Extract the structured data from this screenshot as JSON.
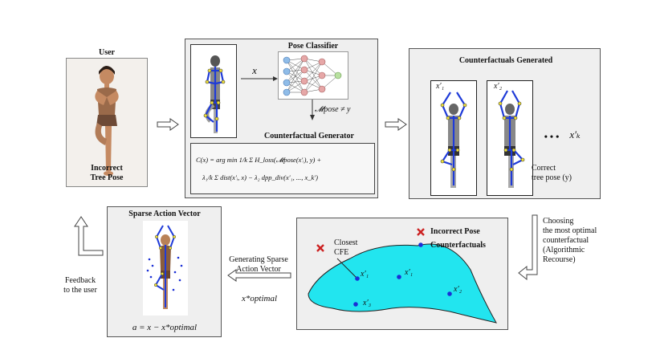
{
  "user": {
    "title": "User",
    "caption_line1": "Incorrect",
    "caption_line2": "Tree Pose"
  },
  "classifier": {
    "title": "Pose Classifier",
    "input_symbol": "x",
    "output_expr": "𝓜pose ≠ y",
    "generator_title": "Counterfactual Generator",
    "formula_line1": "C(x) = arg min  1/k Σ H_loss(𝓜pose(x′ᵢ), y) +",
    "formula_line2": "λ₁/k Σ dist(x′ᵢ, x) − λ₂ dpp_div(x′₁, ..., x_k′)"
  },
  "counterfactuals": {
    "title": "Counterfactuals Generated",
    "cf1": "x′₁",
    "cf2": "x′₂",
    "dots": "• • •",
    "cfk": "x′ₖ",
    "caption_line1": "Correct",
    "caption_line2": "tree pose (y)"
  },
  "choosing": {
    "line1": "Choosing",
    "line2": "the most optimal",
    "line3": "counterfactual",
    "line4": "(Algorithmic",
    "line5": "Recourse)"
  },
  "selection": {
    "legend_incorrect": "Incorrect Pose",
    "legend_cf": "Counterfactuals",
    "closest_line1": "Closest",
    "closest_line2": "CFE",
    "p1": "x′₁",
    "p2": "x′₁",
    "p3": "x′₃",
    "p4": "x′₂",
    "colors": {
      "region": "#22e5ef",
      "incorrect": "#cc2222",
      "cf": "#1a2fd6"
    }
  },
  "generating": {
    "line1": "Generating Sparse",
    "line2": "Action Vector",
    "symbol": "x*optimal"
  },
  "sparse": {
    "title": "Sparse Action Vector",
    "formula": "a = x − x*optimal"
  },
  "feedback": {
    "line1": "Feedback",
    "line2": "to the user"
  }
}
